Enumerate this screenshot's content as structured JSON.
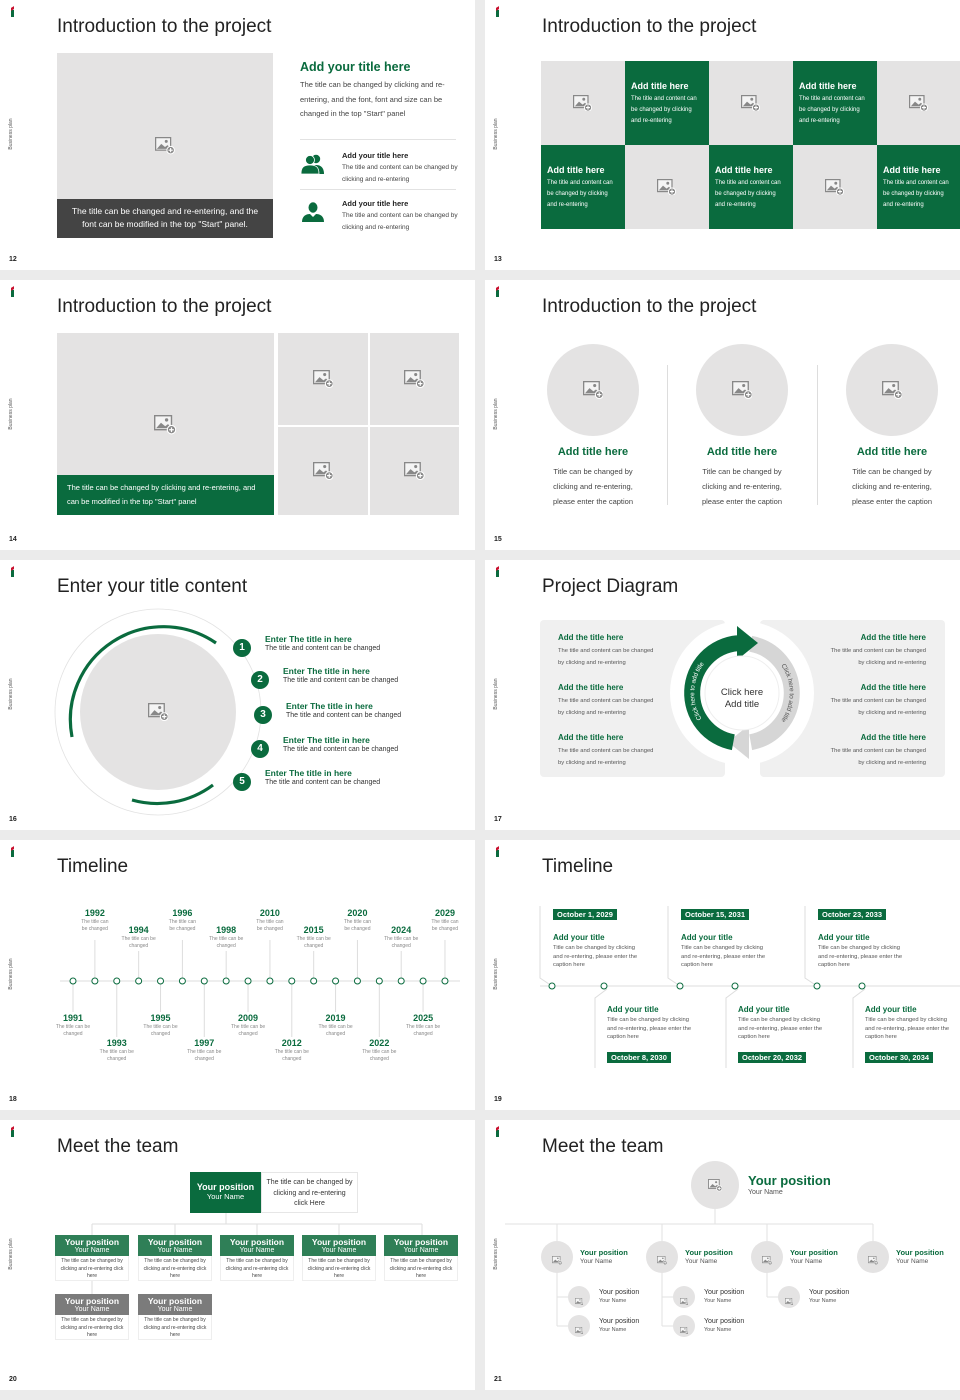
{
  "brand": {
    "side_label": "Business plan",
    "accent": "#0a6b3e",
    "accent_light": "#2f7f57",
    "placeholder": "#e4e3e3",
    "dark_caption": "#444444",
    "logo_red": "#c8102e"
  },
  "slides": [
    {
      "page": "12",
      "title": "Introduction to the project",
      "caption": "The title can be changed and re-entering, and the font can be modified in the top \"Start\" panel.",
      "heading": "Add your title here",
      "body": "The title can be changed by clicking and re-entering, and the font, font and size can be changed in the top \"Start\" panel",
      "items": [
        {
          "icon": "users-icon",
          "title": "Add your title here",
          "text": "The title and content can be changed by clicking and re-entering"
        },
        {
          "icon": "user-icon",
          "title": "Add your title here",
          "text": "The title and content can be changed by clicking and re-entering"
        }
      ]
    },
    {
      "page": "13",
      "title": "Introduction to the project",
      "tiles": [
        {
          "title": "Add title here",
          "text": "The title and content can be changed by clicking and re-entering"
        },
        {
          "title": "Add title here",
          "text": "The title and content can be changed by clicking and re-entering"
        },
        {
          "title": "Add title here",
          "text": "The title and content can be changed by clicking and re-entering"
        },
        {
          "title": "Add title here",
          "text": "The title and content can be changed by clicking and re-entering"
        },
        {
          "title": "Add title here",
          "text": "The title and content can be changed by clicking and re-entering"
        }
      ]
    },
    {
      "page": "14",
      "title": "Introduction to the project",
      "caption": "The title can be changed by clicking and re-entering, and can be modified in the top \"Start\" panel"
    },
    {
      "page": "15",
      "title": "Introduction to the project",
      "cards": [
        {
          "title": "Add title here",
          "text": "Title can be changed by clicking and re-entering, please enter the caption"
        },
        {
          "title": "Add title here",
          "text": "Title can be changed by clicking and re-entering, please enter the caption"
        },
        {
          "title": "Add title here",
          "text": "Title can be changed by clicking and re-entering, please enter the caption"
        }
      ]
    },
    {
      "page": "16",
      "title": "Enter your title content",
      "items": [
        {
          "num": "1",
          "title": "Enter The title in here",
          "text": "The title and content can be changed"
        },
        {
          "num": "2",
          "title": "Enter The title in here",
          "text": "The title and content can be changed"
        },
        {
          "num": "3",
          "title": "Enter The title in here",
          "text": "The title and content can be changed"
        },
        {
          "num": "4",
          "title": "Enter The title in here",
          "text": "The title and content can be changed"
        },
        {
          "num": "5",
          "title": "Enter The title in here",
          "text": "The title and content can be changed"
        }
      ]
    },
    {
      "page": "17",
      "title": "Project Diagram",
      "center_line1": "Click here",
      "center_line2": "Add title",
      "arrow_left": "Click here to add title",
      "arrow_right": "Click here to add title",
      "left": [
        {
          "title": "Add the title here",
          "text": "The title and content can be changed by clicking and re-entering"
        },
        {
          "title": "Add the title here",
          "text": "The title and content can be changed by clicking and re-entering"
        },
        {
          "title": "Add the title here",
          "text": "The title and content can be changed by clicking and re-entering"
        }
      ],
      "right": [
        {
          "title": "Add the title here",
          "text": "The title and content can be changed by clicking and re-entering"
        },
        {
          "title": "Add the title here",
          "text": "The title and content can be changed by clicking and re-entering"
        },
        {
          "title": "Add the title here",
          "text": "The title and content can be changed by clicking and re-entering"
        }
      ]
    },
    {
      "page": "18",
      "title": "Timeline",
      "events": [
        {
          "year": "1991",
          "text": "The title can be changed"
        },
        {
          "year": "1992",
          "text": "The title can be changed"
        },
        {
          "year": "1993",
          "text": "The title can be changed"
        },
        {
          "year": "1994",
          "text": "The title can be changed"
        },
        {
          "year": "1995",
          "text": "The title can be changed"
        },
        {
          "year": "1996",
          "text": "The title can be changed"
        },
        {
          "year": "1997",
          "text": "The title can be changed"
        },
        {
          "year": "1998",
          "text": "The title can be changed"
        },
        {
          "year": "2009",
          "text": "The title can be changed"
        },
        {
          "year": "2010",
          "text": "The title can be changed"
        },
        {
          "year": "2012",
          "text": "The title can be changed"
        },
        {
          "year": "2015",
          "text": "The title can be changed"
        },
        {
          "year": "2019",
          "text": "The title can be changed"
        },
        {
          "year": "2020",
          "text": "The title can be changed"
        },
        {
          "year": "2022",
          "text": "The title can be changed"
        },
        {
          "year": "2024",
          "text": "The title can be changed"
        },
        {
          "year": "2025",
          "text": "The title can be changed"
        },
        {
          "year": "2029",
          "text": "The title can be changed"
        }
      ]
    },
    {
      "page": "19",
      "title": "Timeline",
      "events": [
        {
          "date": "October 1, 2029",
          "title": "Add your title",
          "text": "Title can be changed by clicking and re-entering, please enter the caption here"
        },
        {
          "date": "October 8, 2030",
          "title": "Add your title",
          "text": "Title can be changed by clicking and re-entering, please enter the caption here"
        },
        {
          "date": "October 15, 2031",
          "title": "Add your title",
          "text": "Title can be changed by clicking and re-entering, please enter the caption here"
        },
        {
          "date": "October 20, 2032",
          "title": "Add your title",
          "text": "Title can be changed by clicking and re-entering, please enter the caption here"
        },
        {
          "date": "October 23, 2033",
          "title": "Add your title",
          "text": "Title can be changed by clicking and re-entering, please enter the caption here"
        },
        {
          "date": "October 30, 2034",
          "title": "Add your title",
          "text": "Title can be changed by clicking and re-entering, please enter the caption here"
        }
      ]
    },
    {
      "page": "20",
      "title": "Meet the team",
      "top": {
        "position": "Your position",
        "name": "Your Name",
        "text": "The title can be changed by clicking and re-entering click Here"
      },
      "row1": [
        {
          "position": "Your position",
          "name": "Your Name",
          "text": "The title can be changed by clicking and re-entering click here"
        },
        {
          "position": "Your position",
          "name": "Your Name",
          "text": "The title can be changed by clicking and re-entering click here"
        },
        {
          "position": "Your position",
          "name": "Your Name",
          "text": "The title can be changed by clicking and re-entering click here"
        },
        {
          "position": "Your position",
          "name": "Your Name",
          "text": "The title can be changed by clicking and re-entering click here"
        },
        {
          "position": "Your position",
          "name": "Your Name",
          "text": "The title can be changed by clicking and re-entering click here"
        }
      ],
      "row2": [
        {
          "position": "Your position",
          "name": "Your Name",
          "text": "The title can be changed by clicking and re-entering click here"
        },
        {
          "position": "Your position",
          "name": "Your Name",
          "text": "The title can be changed by clicking and re-entering click here"
        }
      ]
    },
    {
      "page": "21",
      "title": "Meet the team",
      "top": {
        "position": "Your position",
        "name": "Your Name"
      },
      "children": [
        {
          "position": "Your position",
          "name": "Your Name",
          "subs": [
            {
              "position": "Your position",
              "name": "Your Name"
            },
            {
              "position": "Your position",
              "name": "Your Name"
            }
          ]
        },
        {
          "position": "Your position",
          "name": "Your Name",
          "subs": [
            {
              "position": "Your position",
              "name": "Your Name"
            },
            {
              "position": "Your position",
              "name": "Your Name"
            }
          ]
        },
        {
          "position": "Your position",
          "name": "Your Name",
          "subs": [
            {
              "position": "Your position",
              "name": "Your Name"
            }
          ]
        },
        {
          "position": "Your position",
          "name": "Your Name",
          "subs": []
        }
      ]
    }
  ]
}
